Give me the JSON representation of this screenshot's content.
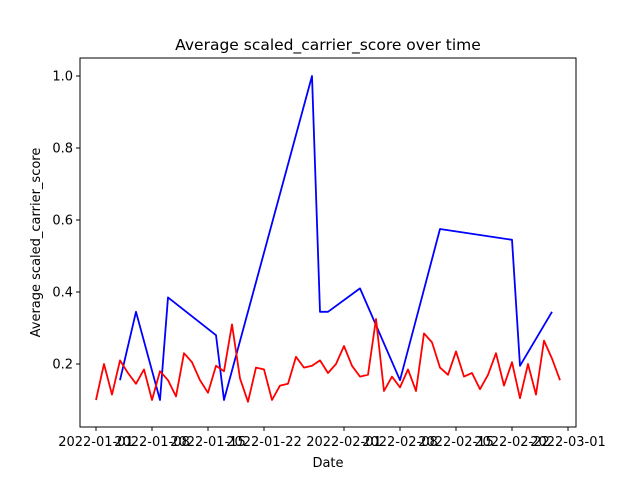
{
  "chart_data": {
    "type": "line",
    "title": "Average scaled_carrier_score over time",
    "xlabel": "Date",
    "ylabel": "Average scaled_carrier_score",
    "xlim": [
      "2021-12-30",
      "2022-03-02"
    ],
    "ylim": [
      0.025,
      1.05
    ],
    "grid": false,
    "x_ticks": [
      "2022-01-01",
      "2022-01-08",
      "2022-01-15",
      "2022-01-22",
      "2022-02-01",
      "2022-02-08",
      "2022-02-15",
      "2022-02-22",
      "2022-03-01"
    ],
    "y_ticks": [
      "0.2",
      "0.4",
      "0.6",
      "0.8",
      "1.0"
    ],
    "series": [
      {
        "color": "#0000ff",
        "points": [
          [
            "2022-01-04",
            0.155
          ],
          [
            "2022-01-06",
            0.345
          ],
          [
            "2022-01-09",
            0.1
          ],
          [
            "2022-01-10",
            0.385
          ],
          [
            "2022-01-16",
            0.28
          ],
          [
            "2022-01-17",
            0.1
          ],
          [
            "2022-01-28",
            1.0
          ],
          [
            "2022-01-29",
            0.345
          ],
          [
            "2022-01-30",
            0.345
          ],
          [
            "2022-02-03",
            0.41
          ],
          [
            "2022-02-08",
            0.155
          ],
          [
            "2022-02-13",
            0.575
          ],
          [
            "2022-02-22",
            0.545
          ],
          [
            "2022-02-23",
            0.195
          ],
          [
            "2022-02-27",
            0.345
          ]
        ]
      },
      {
        "color": "#ff0000",
        "points": [
          [
            "2022-01-01",
            0.1
          ],
          [
            "2022-01-02",
            0.2
          ],
          [
            "2022-01-03",
            0.115
          ],
          [
            "2022-01-04",
            0.21
          ],
          [
            "2022-01-05",
            0.175
          ],
          [
            "2022-01-06",
            0.145
          ],
          [
            "2022-01-07",
            0.185
          ],
          [
            "2022-01-08",
            0.1
          ],
          [
            "2022-01-09",
            0.18
          ],
          [
            "2022-01-10",
            0.155
          ],
          [
            "2022-01-11",
            0.11
          ],
          [
            "2022-01-12",
            0.23
          ],
          [
            "2022-01-13",
            0.205
          ],
          [
            "2022-01-14",
            0.155
          ],
          [
            "2022-01-15",
            0.12
          ],
          [
            "2022-01-16",
            0.195
          ],
          [
            "2022-01-17",
            0.18
          ],
          [
            "2022-01-18",
            0.31
          ],
          [
            "2022-01-19",
            0.16
          ],
          [
            "2022-01-20",
            0.095
          ],
          [
            "2022-01-21",
            0.19
          ],
          [
            "2022-01-22",
            0.185
          ],
          [
            "2022-01-23",
            0.1
          ],
          [
            "2022-01-24",
            0.14
          ],
          [
            "2022-01-25",
            0.145
          ],
          [
            "2022-01-26",
            0.22
          ],
          [
            "2022-01-27",
            0.19
          ],
          [
            "2022-01-28",
            0.195
          ],
          [
            "2022-01-29",
            0.21
          ],
          [
            "2022-01-30",
            0.175
          ],
          [
            "2022-01-31",
            0.2
          ],
          [
            "2022-02-01",
            0.25
          ],
          [
            "2022-02-02",
            0.195
          ],
          [
            "2022-02-03",
            0.165
          ],
          [
            "2022-02-04",
            0.17
          ],
          [
            "2022-02-05",
            0.325
          ],
          [
            "2022-02-06",
            0.125
          ],
          [
            "2022-02-07",
            0.165
          ],
          [
            "2022-02-08",
            0.135
          ],
          [
            "2022-02-09",
            0.185
          ],
          [
            "2022-02-10",
            0.125
          ],
          [
            "2022-02-11",
            0.285
          ],
          [
            "2022-02-12",
            0.26
          ],
          [
            "2022-02-13",
            0.19
          ],
          [
            "2022-02-14",
            0.17
          ],
          [
            "2022-02-15",
            0.235
          ],
          [
            "2022-02-16",
            0.165
          ],
          [
            "2022-02-17",
            0.175
          ],
          [
            "2022-02-18",
            0.13
          ],
          [
            "2022-02-19",
            0.17
          ],
          [
            "2022-02-20",
            0.23
          ],
          [
            "2022-02-21",
            0.14
          ],
          [
            "2022-02-22",
            0.205
          ],
          [
            "2022-02-23",
            0.105
          ],
          [
            "2022-02-24",
            0.2
          ],
          [
            "2022-02-25",
            0.115
          ],
          [
            "2022-02-26",
            0.265
          ],
          [
            "2022-02-27",
            0.215
          ],
          [
            "2022-02-28",
            0.155
          ]
        ]
      }
    ]
  }
}
